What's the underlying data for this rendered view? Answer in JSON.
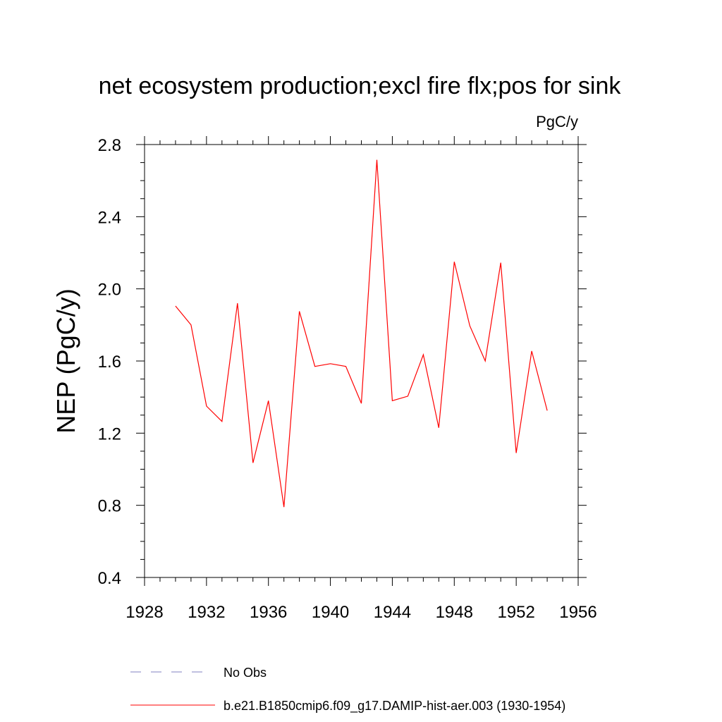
{
  "chart_data": {
    "type": "line",
    "title": "net ecosystem production;excl fire flx;pos for sink",
    "units": "PgC/y",
    "xlabel": "",
    "ylabel": "NEP  (PgC/y)",
    "xlim": [
      1928,
      1956
    ],
    "ylim": [
      0.4,
      2.8
    ],
    "x_ticks": [
      1928,
      1932,
      1936,
      1940,
      1944,
      1948,
      1952,
      1956
    ],
    "y_ticks": [
      0.4,
      0.8,
      1.2,
      1.6,
      2.0,
      2.4,
      2.8
    ],
    "x_tick_labels": [
      "1928",
      "1932",
      "1936",
      "1940",
      "1944",
      "1948",
      "1952",
      "1956"
    ],
    "y_tick_labels": [
      "0.4",
      "0.8",
      "1.2",
      "1.6",
      "2.0",
      "2.4",
      "2.8"
    ],
    "grid": false,
    "legend_position": "bottom",
    "series": [
      {
        "name": "b.e21.B1850cmip6.f09_g17.DAMIP-hist-aer.003 (1930-1954)",
        "color": "#ff0000",
        "style": "solid",
        "x": [
          1930,
          1931,
          1932,
          1933,
          1934,
          1935,
          1936,
          1937,
          1938,
          1939,
          1940,
          1941,
          1942,
          1943,
          1944,
          1945,
          1946,
          1947,
          1948,
          1949,
          1950,
          1951,
          1952,
          1953,
          1954
        ],
        "values": [
          1.905,
          1.8,
          1.35,
          1.265,
          1.92,
          1.035,
          1.38,
          0.79,
          1.875,
          1.57,
          1.585,
          1.57,
          1.365,
          2.715,
          1.38,
          1.405,
          1.635,
          1.23,
          2.15,
          1.795,
          1.6,
          2.145,
          1.09,
          1.655,
          1.325
        ]
      }
    ],
    "legend": [
      {
        "label": "No Obs",
        "color": "#8080c0",
        "style": "dashed"
      },
      {
        "label": "b.e21.B1850cmip6.f09_g17.DAMIP-hist-aer.003 (1930-1954)",
        "color": "#ff0000",
        "style": "solid"
      }
    ]
  }
}
